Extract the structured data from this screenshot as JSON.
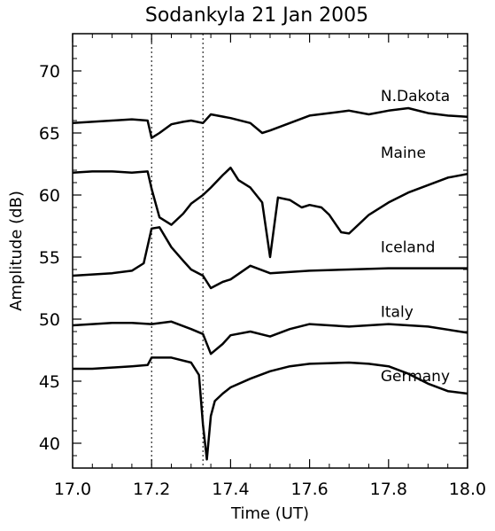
{
  "chart_data": {
    "type": "line",
    "title": "Sodankyla 21 Jan 2005",
    "xlabel": "Time (UT)",
    "ylabel": "Amplitude (dB)",
    "xlim": [
      17.0,
      18.0
    ],
    "ylim": [
      38.0,
      73.0
    ],
    "x_ticks": [
      "17.0",
      "17.2",
      "17.4",
      "17.6",
      "17.8",
      "18.0"
    ],
    "y_ticks": [
      "40",
      "45",
      "50",
      "55",
      "60",
      "65",
      "70"
    ],
    "grid": false,
    "line_color": "#000000",
    "markers": [
      17.2,
      17.33
    ],
    "series": [
      {
        "name": "N.Dakota",
        "x": [
          17.0,
          17.05,
          17.1,
          17.15,
          17.19,
          17.2,
          17.22,
          17.25,
          17.28,
          17.3,
          17.33,
          17.35,
          17.4,
          17.45,
          17.48,
          17.5,
          17.55,
          17.6,
          17.65,
          17.7,
          17.75,
          17.8,
          17.85,
          17.9,
          17.95,
          18.0
        ],
        "values": [
          65.8,
          65.9,
          66.0,
          66.1,
          66.0,
          64.6,
          65.0,
          65.7,
          65.9,
          66.0,
          65.8,
          66.5,
          66.2,
          65.8,
          65.0,
          65.2,
          65.8,
          66.4,
          66.6,
          66.8,
          66.5,
          66.8,
          67.0,
          66.6,
          66.4,
          66.3
        ]
      },
      {
        "name": "Maine",
        "x": [
          17.0,
          17.05,
          17.1,
          17.15,
          17.19,
          17.2,
          17.22,
          17.25,
          17.28,
          17.3,
          17.33,
          17.35,
          17.38,
          17.4,
          17.42,
          17.45,
          17.48,
          17.5,
          17.52,
          17.55,
          17.58,
          17.6,
          17.63,
          17.65,
          17.68,
          17.7,
          17.75,
          17.8,
          17.85,
          17.9,
          17.95,
          18.0
        ],
        "values": [
          61.8,
          61.9,
          61.9,
          61.8,
          61.9,
          60.5,
          58.2,
          57.6,
          58.5,
          59.3,
          60.0,
          60.6,
          61.6,
          62.2,
          61.2,
          60.6,
          59.4,
          55.0,
          59.8,
          59.6,
          59.0,
          59.2,
          59.0,
          58.4,
          57.0,
          56.9,
          58.4,
          59.4,
          60.2,
          60.8,
          61.4,
          61.7
        ]
      },
      {
        "name": "Iceland",
        "x": [
          17.0,
          17.05,
          17.1,
          17.15,
          17.18,
          17.2,
          17.22,
          17.25,
          17.28,
          17.3,
          17.33,
          17.35,
          17.38,
          17.4,
          17.45,
          17.5,
          17.6,
          17.7,
          17.8,
          17.9,
          18.0
        ],
        "values": [
          53.5,
          53.6,
          53.7,
          53.9,
          54.5,
          57.3,
          57.4,
          55.8,
          54.7,
          54.0,
          53.5,
          52.5,
          53.0,
          53.2,
          54.3,
          53.7,
          53.9,
          54.0,
          54.1,
          54.1,
          54.1
        ]
      },
      {
        "name": "Italy",
        "x": [
          17.0,
          17.05,
          17.1,
          17.15,
          17.2,
          17.25,
          17.3,
          17.33,
          17.35,
          17.38,
          17.4,
          17.45,
          17.5,
          17.55,
          17.6,
          17.7,
          17.8,
          17.9,
          18.0
        ],
        "values": [
          49.5,
          49.6,
          49.7,
          49.7,
          49.6,
          49.8,
          49.2,
          48.8,
          47.2,
          48.0,
          48.7,
          49.0,
          48.6,
          49.2,
          49.6,
          49.4,
          49.6,
          49.4,
          48.9
        ]
      },
      {
        "name": "Germany",
        "x": [
          17.0,
          17.05,
          17.1,
          17.15,
          17.19,
          17.2,
          17.25,
          17.3,
          17.32,
          17.33,
          17.34,
          17.35,
          17.36,
          17.38,
          17.4,
          17.45,
          17.5,
          17.55,
          17.6,
          17.7,
          17.75,
          17.8,
          17.85,
          17.9,
          17.95,
          18.0
        ],
        "values": [
          46.0,
          46.0,
          46.1,
          46.2,
          46.3,
          46.9,
          46.9,
          46.5,
          45.5,
          41.5,
          38.7,
          42.2,
          43.4,
          44.0,
          44.5,
          45.2,
          45.8,
          46.2,
          46.4,
          46.5,
          46.4,
          46.2,
          45.6,
          44.8,
          44.2,
          44.0
        ]
      }
    ]
  }
}
